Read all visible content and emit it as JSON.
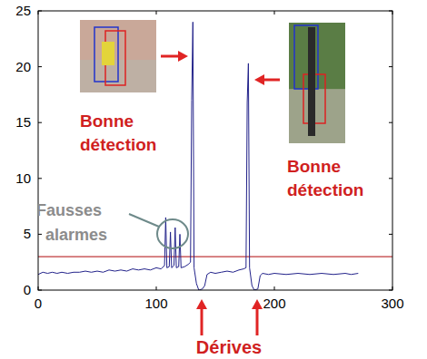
{
  "chart_data": {
    "type": "line",
    "x": [
      0,
      4,
      8,
      12,
      16,
      20,
      25,
      30,
      35,
      40,
      45,
      50,
      55,
      60,
      65,
      70,
      75,
      80,
      85,
      90,
      95,
      100,
      104,
      107,
      108,
      109,
      111,
      112,
      113,
      115,
      116,
      117,
      119,
      120,
      121,
      124,
      127,
      129,
      130,
      131,
      132,
      134,
      136,
      139,
      141,
      143,
      146,
      150,
      155,
      160,
      165,
      170,
      174,
      176,
      177,
      178,
      179,
      181,
      183,
      186,
      188,
      190,
      195,
      200,
      210,
      220,
      230,
      240,
      250,
      260,
      265,
      271
    ],
    "series": [
      {
        "color": "#22228a",
        "values": [
          1.4,
          1.6,
          1.5,
          1.6,
          1.5,
          1.6,
          1.5,
          1.6,
          1.6,
          1.7,
          1.6,
          1.7,
          1.6,
          1.8,
          1.7,
          1.8,
          1.7,
          1.9,
          1.8,
          1.9,
          1.8,
          2.0,
          1.9,
          2.2,
          6.5,
          2.0,
          2.1,
          5.2,
          2.0,
          2.2,
          5.6,
          2.0,
          2.1,
          5.0,
          2.0,
          2.1,
          2.3,
          2.5,
          17,
          24.0,
          2.0,
          0.6,
          0.0,
          0.1,
          0.4,
          1.4,
          1.6,
          1.5,
          1.6,
          1.7,
          1.6,
          1.8,
          1.9,
          2.0,
          16.8,
          20.3,
          2.0,
          0.4,
          0.0,
          0.1,
          1.3,
          1.5,
          1.4,
          1.5,
          1.4,
          1.5,
          1.4,
          1.5,
          1.4,
          1.5,
          1.4,
          1.5
        ]
      }
    ],
    "threshold": 3,
    "xlim": [
      0,
      300
    ],
    "xticks": [
      0,
      100,
      200,
      300
    ],
    "ylim": [
      0,
      25
    ],
    "yticks": [
      0,
      5,
      10,
      15,
      20,
      25
    ],
    "annotations": [
      {
        "text": "Bonne détection"
      },
      {
        "text": "Bonne détection"
      },
      {
        "text": "Fausses alarmes"
      },
      {
        "text": "Dérives"
      }
    ]
  }
}
